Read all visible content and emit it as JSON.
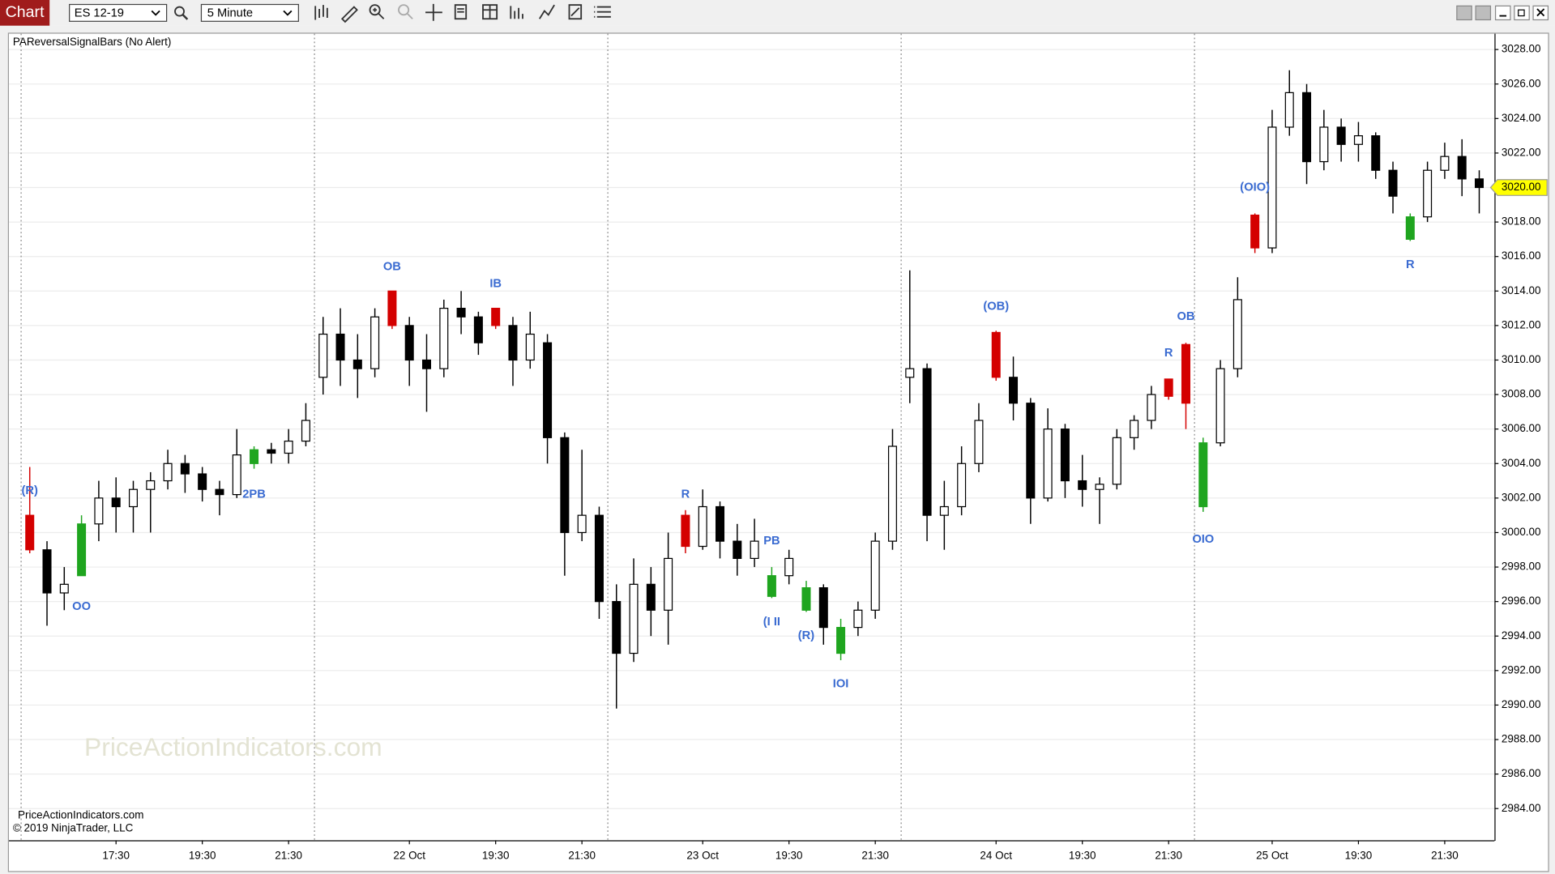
{
  "toolbar": {
    "tab": "Chart",
    "instrument": "ES 12-19",
    "interval": "5 Minute"
  },
  "chart_data": {
    "type": "candlestick",
    "title": "PAReversalSignalBars (No Alert)",
    "watermark": "PriceActionIndicators.com",
    "footer": [
      "PriceActionIndicators.com",
      "© 2019 NinjaTrader, LLC"
    ],
    "categories": [
      null,
      null,
      null,
      null,
      null,
      "17:30",
      null,
      null,
      null,
      null,
      "19:30",
      null,
      null,
      null,
      null,
      "21:30",
      null,
      null,
      null,
      null,
      null,
      null,
      "22 Oct",
      null,
      null,
      null,
      null,
      "19:30",
      null,
      null,
      null,
      null,
      "21:30",
      null,
      null,
      null,
      null,
      null,
      null,
      "23 Oct",
      null,
      null,
      null,
      null,
      "19:30",
      null,
      null,
      null,
      null,
      "21:30",
      null,
      null,
      null,
      null,
      null,
      null,
      "24 Oct",
      null,
      null,
      null,
      null,
      "19:30",
      null,
      null,
      null,
      null,
      "21:30",
      null,
      null,
      null,
      null,
      null,
      "25 Oct",
      null,
      null,
      null,
      null,
      "19:30",
      null,
      null,
      null,
      null,
      "21:30",
      null,
      null
    ],
    "open": [
      3001,
      2999,
      2996.5,
      2997.5,
      3000.5,
      3002,
      3001.5,
      3002.5,
      3003,
      3004,
      3003.4,
      3002.5,
      3002.2,
      3004,
      3004.8,
      3004.6,
      3005.3,
      3009,
      3011.5,
      3010,
      3009.5,
      3014,
      3012,
      3010,
      3009.5,
      3013,
      3012.5,
      3013,
      3012,
      3010,
      3011,
      3005.5,
      3000,
      3001,
      2996,
      2993,
      2997,
      2995.5,
      3001,
      2999.2,
      3001.5,
      2999.5,
      2998.5,
      2996.3,
      2997.5,
      2995.5,
      2996.8,
      2993,
      2994.5,
      2995.5,
      2999.5,
      3009,
      3009.5,
      3001,
      3001.5,
      3004,
      3011.6,
      3009,
      3007.5,
      3002,
      3006,
      3003,
      3002.5,
      3002.8,
      3005.5,
      3006.5,
      3008.9,
      3010.9,
      3001.5,
      3005.2,
      3009.5,
      3018.4,
      3016.5,
      3023.5,
      3025.5,
      3021.5,
      3023.5,
      3022.5,
      3023,
      3021,
      3017,
      3018.3,
      3021,
      3021.8,
      3020.5
    ],
    "high": [
      3003.8,
      2999.5,
      2998,
      3001,
      3003,
      3003.2,
      3003,
      3003.5,
      3004.8,
      3004.5,
      3003.8,
      3003,
      3006,
      3005,
      3005.2,
      3006,
      3007.5,
      3012.5,
      3013,
      3011.5,
      3013,
      3014,
      3012.5,
      3011.5,
      3013.5,
      3014,
      3012.8,
      3013,
      3012.5,
      3012.8,
      3011.5,
      3005.8,
      3004.8,
      3001.5,
      2997,
      2998.5,
      2998,
      3000,
      3001.3,
      3002.5,
      3001.8,
      3000.5,
      3000.8,
      2998,
      2999,
      2997.2,
      2997,
      2995,
      2996,
      3000,
      3006,
      3015.2,
      3009.8,
      3003,
      3005,
      3007.5,
      3011.7,
      3010.2,
      3007.8,
      3007.2,
      3006.3,
      3004.5,
      3003.2,
      3006,
      3006.8,
      3008.5,
      3008.9,
      3011,
      3005.5,
      3010,
      3014.8,
      3018.5,
      3024.5,
      3026.8,
      3026,
      3024.5,
      3024,
      3023.8,
      3023.2,
      3021.5,
      3018.5,
      3021.5,
      3022.6,
      3022.8,
      3021
    ],
    "low": [
      2998.8,
      2994.6,
      2995.5,
      2997.5,
      2999.5,
      3000,
      3000,
      3000,
      3002.5,
      3002.3,
      3001.8,
      3001,
      3002,
      3003.7,
      3004,
      3004,
      3005,
      3008,
      3008.5,
      3007.8,
      3009,
      3011.8,
      3008.5,
      3007,
      3009,
      3011.5,
      3010.3,
      3011.8,
      3008.5,
      3009.5,
      3004,
      2997.5,
      2999.5,
      2995,
      2989.8,
      2992.5,
      2994,
      2993.5,
      2998.8,
      2999,
      2998.5,
      2997.5,
      2998,
      2996.2,
      2997,
      2995.4,
      2993.5,
      2992.6,
      2994,
      2995,
      2999,
      3007.5,
      2999.5,
      2999,
      3001,
      3003.5,
      3008.8,
      3006.5,
      3000.5,
      3001.8,
      3002,
      3001.5,
      3000.5,
      3002.5,
      3004.8,
      3006,
      3007.7,
      3006,
      3001.2,
      3005,
      3009,
      3016.2,
      3016.2,
      3023,
      3020.2,
      3021,
      3021.5,
      3021.5,
      3020.5,
      3018.5,
      3016.9,
      3018,
      3020.5,
      3019.5,
      3018.5
    ],
    "close": [
      2999,
      2996.5,
      2997,
      3000.5,
      3002,
      3001.5,
      3002.5,
      3003,
      3004,
      3003.4,
      3002.5,
      3002.2,
      3004.5,
      3004.8,
      3004.6,
      3005.3,
      3006.5,
      3011.5,
      3010,
      3009.5,
      3012.5,
      3012,
      3010,
      3009.5,
      3013,
      3012.5,
      3011,
      3012,
      3010,
      3011.5,
      3005.5,
      3000,
      3001,
      2996,
      2993,
      2997,
      2995.5,
      2998.5,
      2999.2,
      3001.5,
      2999.5,
      2998.5,
      2999.5,
      2997.5,
      2998.5,
      2996.8,
      2994.5,
      2994.5,
      2995.5,
      2999.5,
      3005,
      3009.5,
      3001,
      3001.5,
      3004,
      3006.5,
      3009,
      3007.5,
      3002,
      3006,
      3003,
      3002.5,
      3002.8,
      3005.5,
      3006.5,
      3008,
      3007.9,
      3007.5,
      3005.2,
      3009.5,
      3013.5,
      3016.5,
      3023.5,
      3025.5,
      3021.5,
      3023.5,
      3022.5,
      3023,
      3021,
      3019.5,
      3018.3,
      3021,
      3021.8,
      3020.5,
      3020
    ],
    "bar_colors": [
      "#d40000",
      null,
      null,
      "#1fa51f",
      null,
      null,
      null,
      null,
      null,
      null,
      null,
      null,
      null,
      "#1fa51f",
      null,
      null,
      null,
      null,
      null,
      null,
      null,
      "#d40000",
      null,
      null,
      null,
      null,
      null,
      "#d40000",
      null,
      null,
      null,
      null,
      null,
      null,
      null,
      null,
      null,
      null,
      "#d40000",
      null,
      null,
      null,
      null,
      "#1fa51f",
      null,
      "#1fa51f",
      null,
      "#1fa51f",
      null,
      null,
      null,
      null,
      null,
      null,
      null,
      null,
      "#d40000",
      null,
      null,
      null,
      null,
      null,
      null,
      null,
      null,
      null,
      "#d40000",
      "#d40000",
      "#1fa51f",
      null,
      null,
      "#d40000",
      null,
      null,
      null,
      null,
      null,
      null,
      null,
      null,
      "#1fa51f",
      null,
      null,
      null,
      null
    ],
    "up_color": "#ffffff",
    "down_color": "#000000",
    "outline_color": "#000000",
    "session_breaks": [
      0,
      17,
      34,
      51,
      68
    ],
    "annotation_color": "#3a6bd1",
    "annotations": [
      {
        "text": "(R)",
        "at": 0,
        "y": 3002.4
      },
      {
        "text": "OO",
        "at": 3,
        "y": 2995.7
      },
      {
        "text": "2PB",
        "at": 13,
        "y": 3002.2
      },
      {
        "text": "OB",
        "at": 21,
        "y": 3015.4
      },
      {
        "text": "IB",
        "at": 27,
        "y": 3014.4
      },
      {
        "text": "R",
        "at": 38,
        "y": 3002.2
      },
      {
        "text": "PB",
        "at": 43,
        "y": 2999.5
      },
      {
        "text": "(I II",
        "at": 43,
        "y": 2994.8
      },
      {
        "text": "(R)",
        "at": 45,
        "y": 2994
      },
      {
        "text": "IOI",
        "at": 47,
        "y": 2991.2
      },
      {
        "text": "(OB)",
        "at": 56,
        "y": 3013.1
      },
      {
        "text": "R",
        "at": 66,
        "y": 3010.4
      },
      {
        "text": "OB",
        "at": 67,
        "y": 3012.5
      },
      {
        "text": "OIO",
        "at": 68,
        "y": 2999.6
      },
      {
        "text": "(OIO)",
        "at": 71,
        "y": 3020
      },
      {
        "text": "R",
        "at": 80,
        "y": 3015.5
      }
    ],
    "last_price": {
      "value": 3020,
      "label": "3020.00"
    },
    "last_price_color": "#ffff00",
    "ylim": [
      2982.16,
      3028.86
    ],
    "yticks": [
      {
        "value": 2984,
        "label": "2984.00"
      },
      {
        "value": 2986,
        "label": "2986.00"
      },
      {
        "value": 2988,
        "label": "2988.00"
      },
      {
        "value": 2990,
        "label": "2990.00"
      },
      {
        "value": 2992,
        "label": "2992.00"
      },
      {
        "value": 2994,
        "label": "2994.00"
      },
      {
        "value": 2996,
        "label": "2996.00"
      },
      {
        "value": 2998,
        "label": "2998.00"
      },
      {
        "value": 3000,
        "label": "3000.00"
      },
      {
        "value": 3002,
        "label": "3002.00"
      },
      {
        "value": 3004,
        "label": "3004.00"
      },
      {
        "value": 3006,
        "label": "3006.00"
      },
      {
        "value": 3008,
        "label": "3008.00"
      },
      {
        "value": 3010,
        "label": "3010.00"
      },
      {
        "value": 3012,
        "label": "3012.00"
      },
      {
        "value": 3014,
        "label": "3014.00"
      },
      {
        "value": 3016,
        "label": "3016.00"
      },
      {
        "value": 3018,
        "label": "3018.00"
      },
      {
        "value": 3020,
        "label": "3020.00"
      },
      {
        "value": 3022,
        "label": "3022.00"
      },
      {
        "value": 3024,
        "label": "3024.00"
      },
      {
        "value": 3026,
        "label": "3026.00"
      },
      {
        "value": 3028,
        "label": "3028.00"
      }
    ],
    "grid": true
  }
}
